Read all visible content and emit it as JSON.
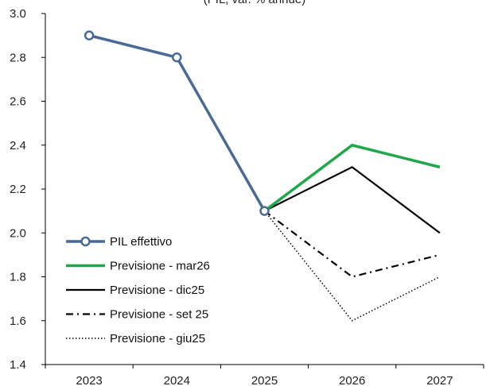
{
  "chart_data": {
    "type": "line",
    "title": "",
    "subtitle": "(PIL, var. % annue)",
    "xlabel": "",
    "ylabel": "",
    "categories": [
      "2023",
      "2024",
      "2025",
      "2026",
      "2027"
    ],
    "ylim": [
      1.4,
      3.0
    ],
    "yticks": [
      1.4,
      1.6,
      1.8,
      2.0,
      2.2,
      2.4,
      2.6,
      2.8,
      3.0
    ],
    "ytick_labels": [
      "1.4",
      "1.6",
      "1.8",
      "2.0",
      "2.2",
      "2.4",
      "2.6",
      "2.8",
      "3.0"
    ],
    "grid": false,
    "legend_position": "bottom-left",
    "series": [
      {
        "name": "PIL effettivo",
        "x": [
          "2023",
          "2024",
          "2025"
        ],
        "values": [
          2.9,
          2.8,
          2.1
        ],
        "color": "#4a6a96",
        "style": "solid-markers"
      },
      {
        "name": "Previsione - mar26",
        "x": [
          "2025",
          "2026",
          "2027"
        ],
        "values": [
          2.1,
          2.4,
          2.3
        ],
        "color": "#1fa84a",
        "style": "solid-thick"
      },
      {
        "name": "Previsione - dic25",
        "x": [
          "2025",
          "2026",
          "2027"
        ],
        "values": [
          2.1,
          2.3,
          2.0
        ],
        "color": "#000000",
        "style": "solid"
      },
      {
        "name": "Previsione - set 25",
        "x": [
          "2025",
          "2026",
          "2027"
        ],
        "values": [
          2.1,
          1.8,
          1.9
        ],
        "color": "#000000",
        "style": "dashdot"
      },
      {
        "name": "Previsione - giu25",
        "x": [
          "2025",
          "2026",
          "2027"
        ],
        "values": [
          2.1,
          1.6,
          1.8
        ],
        "color": "#000000",
        "style": "dotted"
      }
    ]
  }
}
